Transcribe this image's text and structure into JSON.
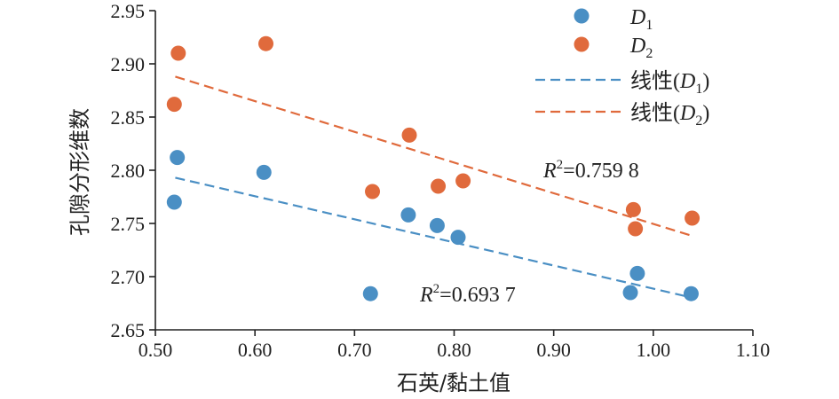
{
  "chart_data": {
    "type": "scatter",
    "xlabel": "石英/黏土值",
    "ylabel": "孔隙分形维数",
    "xlim": [
      0.5,
      1.1
    ],
    "ylim": [
      2.65,
      2.95
    ],
    "x_ticks": [
      "0.50",
      "0.60",
      "0.70",
      "0.80",
      "0.90",
      "1.00",
      "1.10"
    ],
    "y_ticks": [
      "2.65",
      "2.70",
      "2.75",
      "2.80",
      "2.85",
      "2.90",
      "2.95"
    ],
    "grid": false,
    "legend_position": "top-right",
    "colors": {
      "D1": "#4a8fc4",
      "D2": "#e06a3c"
    },
    "series": [
      {
        "name": "D1",
        "name_main": "D",
        "name_sub": "1",
        "color": "#4a8fc4",
        "points": [
          [
            0.519,
            2.77
          ],
          [
            0.522,
            2.812
          ],
          [
            0.609,
            2.798
          ],
          [
            0.716,
            2.684
          ],
          [
            0.754,
            2.758
          ],
          [
            0.783,
            2.748
          ],
          [
            0.804,
            2.737
          ],
          [
            0.977,
            2.685
          ],
          [
            0.984,
            2.703
          ],
          [
            1.038,
            2.684
          ]
        ]
      },
      {
        "name": "D2",
        "name_main": "D",
        "name_sub": "2",
        "color": "#e06a3c",
        "points": [
          [
            0.519,
            2.862
          ],
          [
            0.523,
            2.91
          ],
          [
            0.611,
            2.919
          ],
          [
            0.718,
            2.78
          ],
          [
            0.755,
            2.833
          ],
          [
            0.784,
            2.785
          ],
          [
            0.809,
            2.79
          ],
          [
            0.98,
            2.763
          ],
          [
            0.982,
            2.745
          ],
          [
            1.039,
            2.755
          ]
        ]
      }
    ],
    "trendlines": [
      {
        "series": "D1",
        "label_prefix": "线性(",
        "label_main": "D",
        "label_sub": "1",
        "label_suffix": ")",
        "color": "#4a8fc4",
        "x_start": 0.52,
        "y_start": 2.793,
        "x_end": 1.04,
        "y_end": 2.68,
        "r2_label": "R",
        "r2_sup": "2",
        "r2_value": "=0.693 7"
      },
      {
        "series": "D2",
        "label_prefix": "线性(",
        "label_main": "D",
        "label_sub": "2",
        "label_suffix": ")",
        "color": "#e06a3c",
        "x_start": 0.52,
        "y_start": 2.888,
        "x_end": 1.04,
        "y_end": 2.738,
        "r2_label": "R",
        "r2_sup": "2",
        "r2_value": "=0.759 8"
      }
    ]
  }
}
